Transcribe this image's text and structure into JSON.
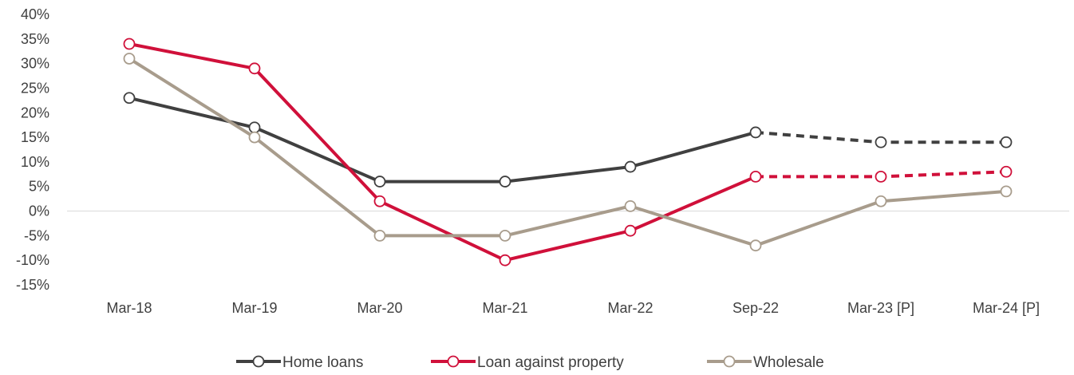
{
  "chart_data": {
    "type": "line",
    "title": "",
    "xlabel": "",
    "ylabel": "",
    "categories": [
      "Mar-18",
      "Mar-19",
      "Mar-20",
      "Mar-21",
      "Mar-22",
      "Sep-22",
      "Mar-23 [P]",
      "Mar-24 [P]"
    ],
    "ylim": [
      -15,
      40
    ],
    "y_ticks": [
      40,
      35,
      30,
      25,
      20,
      15,
      10,
      5,
      0,
      -5,
      -10,
      -15
    ],
    "y_tick_labels": [
      "40%",
      "35%",
      "30%",
      "25%",
      "20%",
      "15%",
      "10%",
      "5%",
      "0%",
      "-5%",
      "-10%",
      "-15%"
    ],
    "y_unit": "%",
    "projected_from_category": "Sep-22",
    "legend_position": "bottom",
    "grid": false,
    "series": [
      {
        "name": "Home loans",
        "color": "#404040",
        "values": [
          23,
          17,
          6,
          6,
          9,
          16,
          14,
          14
        ],
        "projected_dashed": true
      },
      {
        "name": "Loan against property",
        "color": "#D0103A",
        "values": [
          34,
          29,
          2,
          -10,
          -4,
          7,
          7,
          8
        ],
        "projected_dashed": true
      },
      {
        "name": "Wholesale",
        "color": "#A89C8C",
        "values": [
          31,
          15,
          -5,
          -5,
          1,
          -7,
          2,
          4
        ],
        "projected_dashed": false
      }
    ]
  }
}
